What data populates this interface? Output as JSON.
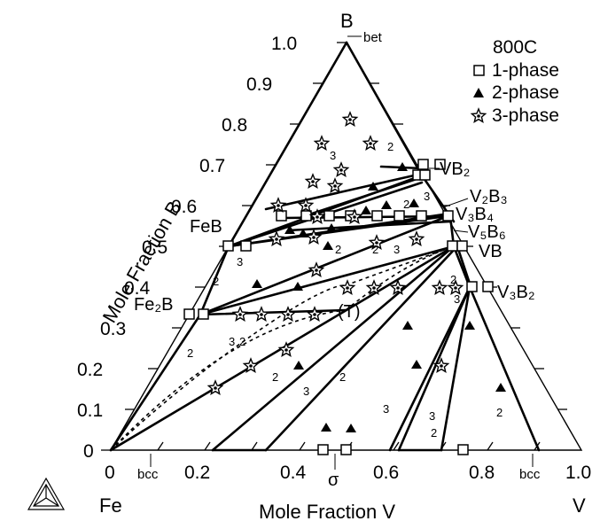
{
  "diagram": {
    "corners": {
      "fe": "Fe",
      "v": "V",
      "b": "B"
    },
    "axis_titles": {
      "x": "Mole Fraction V",
      "y": "Mole Fraction B"
    },
    "bottom_ticks": [
      "0",
      "0.2",
      "0.4",
      "0.6",
      "0.8",
      "1.0"
    ],
    "left_ticks": [
      "0",
      "0.1",
      "0.2",
      "0.3",
      "0.4",
      "0.5",
      "0.6",
      "0.7",
      "0.8",
      "0.9",
      "1.0"
    ],
    "structure_labels": {
      "bet": "bet",
      "bcc_fe": "bcc",
      "bcc_v": "bcc",
      "sigma": "σ",
      "ternary": "(T)"
    },
    "phases": {
      "vb2": "VB₂",
      "v2b3": "V₂B₃",
      "v3b4": "V₃B₄",
      "v5b6": "V₅B₆",
      "vb": "VB",
      "v3b2": "V₃B₂",
      "feb": "FeB",
      "fe2b": "Fe₂B"
    },
    "legend": {
      "title": "800C",
      "items": [
        {
          "label": "1-phase",
          "marker": "open-square"
        },
        {
          "label": "2-phase",
          "marker": "filled-triangle"
        },
        {
          "label": "3-phase",
          "marker": "star"
        }
      ]
    },
    "field_numbers": [
      "2",
      "3",
      "2",
      "3",
      "2",
      "3",
      "2",
      "2",
      "3",
      "2",
      "3",
      "2",
      "3",
      "2",
      "3",
      "2",
      "3",
      "2",
      "3",
      "2",
      "2"
    ],
    "colors": {
      "ink": "#000000",
      "background": "#ffffff"
    }
  }
}
